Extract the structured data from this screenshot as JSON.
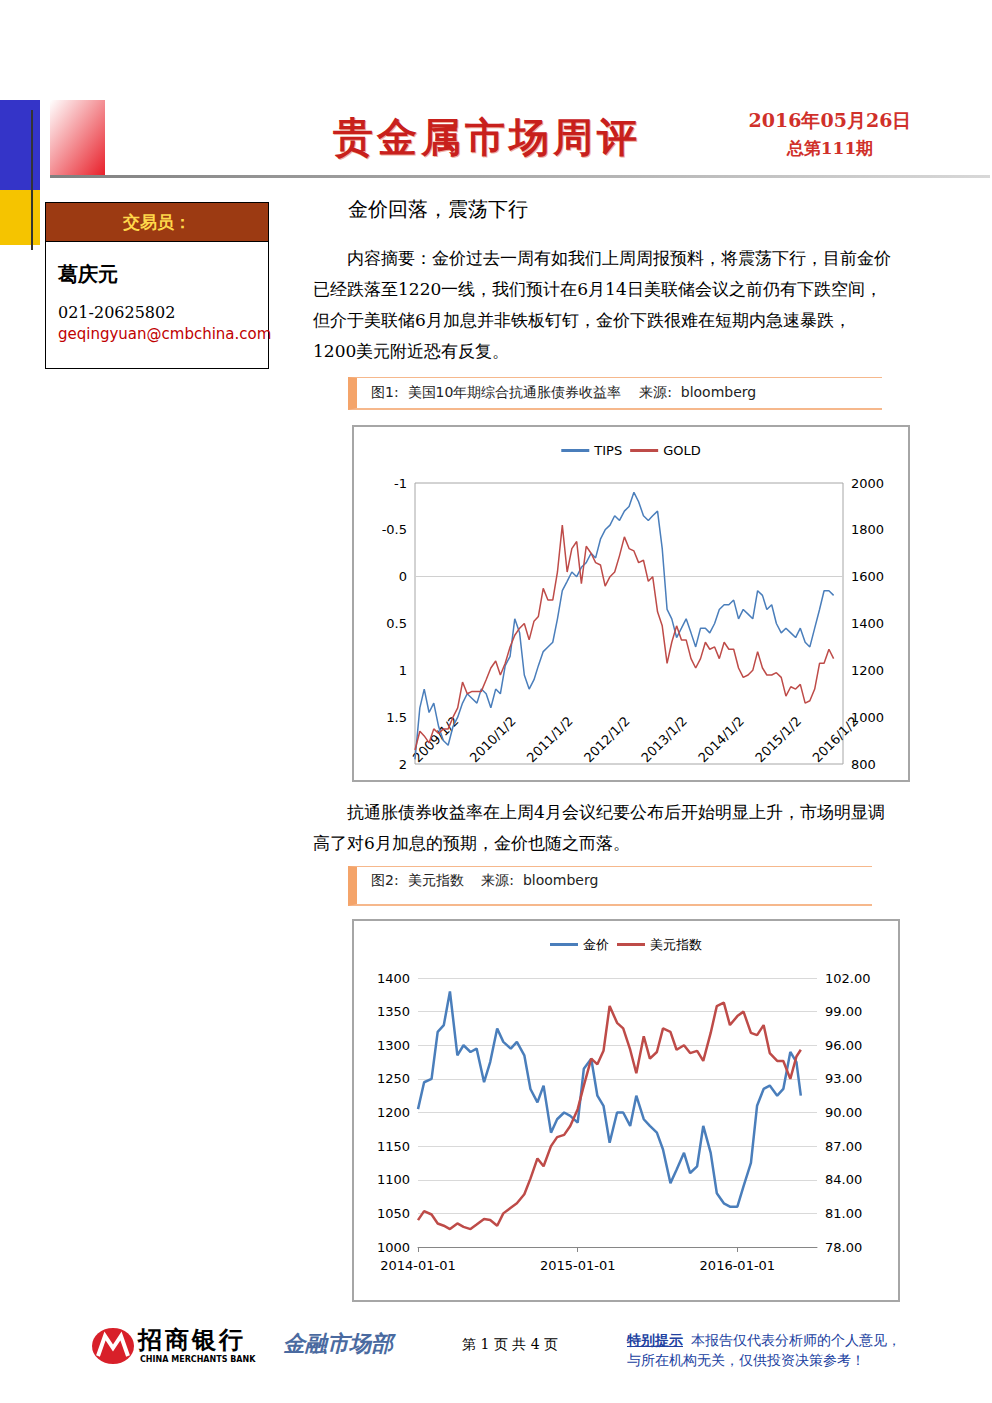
{
  "header": {
    "title": "贵金属市场周评",
    "date": "2016年05月26日",
    "issue": "总第111期"
  },
  "trader": {
    "label": "交易员：",
    "name": "葛庆元",
    "phone": "021-20625802",
    "email": "geqingyuan@cmbchina.com"
  },
  "headline": "金价回落，震荡下行",
  "summary": "内容摘要：金价过去一周有如我们上周周报预料，将震荡下行，目前金价已经跌落至1220一线，我们预计在6月14日美联储会议之前仍有下跌空间，但介于美联储6月加息并非铁板钉钉，金价下跌很难在短期内急速暴跌，1200美元附近恐有反复。",
  "paragraph": "抗通胀债券收益率在上周4月会议纪要公布后开始明显上升，市场明显调高了对6月加息的预期，金价也随之而落。",
  "captions": [
    "图1:  美国10年期综合抗通胀债券收益率    来源:  bloomberg",
    "图2:  美元指数    来源:  bloomberg"
  ],
  "chart_data": [
    {
      "type": "line",
      "legend": "top",
      "grid": false,
      "x": [
        "2009/1/2",
        "2009/2/2",
        "2009/3/2",
        "2009/4/2",
        "2009/5/2",
        "2009/6/2",
        "2009/7/2",
        "2009/8/2",
        "2009/9/2",
        "2009/10/2",
        "2009/11/2",
        "2009/12/2",
        "2010/1/2",
        "2010/2/2",
        "2010/3/2",
        "2010/4/2",
        "2010/5/2",
        "2010/6/2",
        "2010/7/2",
        "2010/8/2",
        "2010/9/2",
        "2010/10/2",
        "2010/11/2",
        "2010/12/2",
        "2011/1/2",
        "2011/2/2",
        "2011/3/2",
        "2011/4/2",
        "2011/5/2",
        "2011/6/2",
        "2011/7/2",
        "2011/8/2",
        "2011/9/2",
        "2011/10/2",
        "2011/11/2",
        "2011/12/2",
        "2012/1/2",
        "2012/2/2",
        "2012/3/2",
        "2012/4/2",
        "2012/5/2",
        "2012/6/2",
        "2012/7/2",
        "2012/8/2",
        "2012/9/2",
        "2012/10/2",
        "2012/11/2",
        "2012/12/2",
        "2013/1/2",
        "2013/2/2",
        "2013/3/2",
        "2013/4/2",
        "2013/5/2",
        "2013/6/2",
        "2013/7/2",
        "2013/8/2",
        "2013/9/2",
        "2013/10/2",
        "2013/11/2",
        "2013/12/2",
        "2014/1/2",
        "2014/2/2",
        "2014/3/2",
        "2014/4/2",
        "2014/5/2",
        "2014/6/2",
        "2014/7/2",
        "2014/8/2",
        "2014/9/2",
        "2014/10/2",
        "2014/11/2",
        "2014/12/2",
        "2015/1/2",
        "2015/2/2",
        "2015/3/2",
        "2015/4/2",
        "2015/5/2",
        "2015/6/2",
        "2015/7/2",
        "2015/8/2",
        "2015/9/2",
        "2015/10/2",
        "2015/11/2",
        "2015/12/2",
        "2016/1/2",
        "2016/2/2",
        "2016/3/2",
        "2016/4/2",
        "2016/5/2"
      ],
      "xlim": [
        "2009/1/2",
        "2016/7/1"
      ],
      "xticks": [
        "2009/1/2",
        "2010/1/2",
        "2011/1/2",
        "2012/1/2",
        "2013/1/2",
        "2014/1/2",
        "2015/1/2",
        "2016/1/2"
      ],
      "ylim": [
        2,
        -1
      ],
      "yticks": [
        2,
        1.5,
        1,
        0.5,
        0,
        -0.5,
        -1
      ],
      "y2lim": [
        800,
        2000
      ],
      "y2ticks": [
        800,
        1000,
        1200,
        1400,
        1600,
        1800,
        2000
      ],
      "series": [
        {
          "name": "TIPS",
          "color": "#4a7ebb",
          "values": [
            1.95,
            1.4,
            1.2,
            1.45,
            1.35,
            1.6,
            1.75,
            1.8,
            1.6,
            1.5,
            1.35,
            1.25,
            1.3,
            1.35,
            1.2,
            1.25,
            1.4,
            1.2,
            1.25,
            0.95,
            0.85,
            0.45,
            0.6,
            1.05,
            1.2,
            1.1,
            0.95,
            0.8,
            0.75,
            0.7,
            0.45,
            0.15,
            0.05,
            -0.05,
            0.0,
            -0.1,
            -0.15,
            -0.25,
            -0.2,
            -0.4,
            -0.5,
            -0.55,
            -0.65,
            -0.6,
            -0.7,
            -0.75,
            -0.9,
            -0.8,
            -0.65,
            -0.6,
            -0.65,
            -0.7,
            -0.3,
            0.35,
            0.45,
            0.65,
            0.55,
            0.45,
            0.6,
            0.75,
            0.55,
            0.55,
            0.6,
            0.5,
            0.35,
            0.3,
            0.3,
            0.25,
            0.45,
            0.35,
            0.4,
            0.45,
            0.15,
            0.2,
            0.35,
            0.3,
            0.5,
            0.6,
            0.55,
            0.6,
            0.65,
            0.55,
            0.7,
            0.75,
            0.55,
            0.35,
            0.15,
            0.15,
            0.2
          ]
        },
        {
          "name": "GOLD",
          "color": "#be4b48",
          "axis": "y2",
          "values": [
            860,
            940,
            920,
            890,
            950,
            930,
            950,
            950,
            1000,
            1040,
            1150,
            1100,
            1110,
            1110,
            1110,
            1160,
            1210,
            1240,
            1180,
            1230,
            1300,
            1350,
            1380,
            1400,
            1330,
            1410,
            1430,
            1550,
            1500,
            1500,
            1620,
            1820,
            1620,
            1720,
            1750,
            1570,
            1730,
            1700,
            1660,
            1650,
            1560,
            1600,
            1620,
            1690,
            1770,
            1720,
            1710,
            1660,
            1670,
            1580,
            1600,
            1450,
            1390,
            1230,
            1320,
            1390,
            1330,
            1330,
            1250,
            1210,
            1250,
            1320,
            1290,
            1300,
            1250,
            1320,
            1290,
            1290,
            1210,
            1170,
            1180,
            1200,
            1280,
            1210,
            1180,
            1180,
            1190,
            1170,
            1090,
            1130,
            1120,
            1140,
            1060,
            1070,
            1120,
            1230,
            1230,
            1290,
            1250
          ]
        }
      ]
    },
    {
      "type": "line",
      "legend": "top",
      "grid": true,
      "x": [
        "2014-01-01",
        "2014-01-15",
        "2014-02-01",
        "2014-02-15",
        "2014-03-01",
        "2014-03-15",
        "2014-04-01",
        "2014-04-15",
        "2014-05-01",
        "2014-05-15",
        "2014-06-01",
        "2014-06-15",
        "2014-07-01",
        "2014-07-15",
        "2014-08-01",
        "2014-08-15",
        "2014-09-01",
        "2014-09-15",
        "2014-10-01",
        "2014-10-15",
        "2014-11-01",
        "2014-11-15",
        "2014-12-01",
        "2014-12-15",
        "2015-01-01",
        "2015-01-15",
        "2015-02-01",
        "2015-02-15",
        "2015-03-01",
        "2015-03-15",
        "2015-04-01",
        "2015-04-15",
        "2015-05-01",
        "2015-05-15",
        "2015-06-01",
        "2015-06-15",
        "2015-07-01",
        "2015-07-15",
        "2015-08-01",
        "2015-08-15",
        "2015-09-01",
        "2015-09-15",
        "2015-10-01",
        "2015-10-15",
        "2015-11-01",
        "2015-11-15",
        "2015-12-01",
        "2015-12-15",
        "2016-01-01",
        "2016-01-15",
        "2016-02-01",
        "2016-02-15",
        "2016-03-01",
        "2016-03-15",
        "2016-04-01",
        "2016-04-15",
        "2016-05-01",
        "2016-05-15",
        "2016-05-25"
      ],
      "xlim": [
        "2014-01-01",
        "2016-07-01"
      ],
      "xticks": [
        "2014-01-01",
        "2015-01-01",
        "2016-01-01"
      ],
      "ylim": [
        1000,
        1400
      ],
      "yticks": [
        1000,
        1050,
        1100,
        1150,
        1200,
        1250,
        1300,
        1350,
        1400
      ],
      "y2lim": [
        78,
        102
      ],
      "y2ticks": [
        {
          "value": 78,
          "label": "78.00"
        },
        {
          "value": 81,
          "label": "81.00"
        },
        {
          "value": 84,
          "label": "84.00"
        },
        {
          "value": 87,
          "label": "87.00"
        },
        {
          "value": 90,
          "label": "90.00"
        },
        {
          "value": 93,
          "label": "93.00"
        },
        {
          "value": 96,
          "label": "96.00"
        },
        {
          "value": 99,
          "label": "99.00"
        },
        {
          "value": 102,
          "label": "102.00"
        }
      ],
      "series": [
        {
          "name": "金价",
          "color": "#4a7ebb",
          "values": [
            1205,
            1245,
            1250,
            1320,
            1330,
            1380,
            1285,
            1300,
            1290,
            1295,
            1245,
            1275,
            1325,
            1305,
            1295,
            1305,
            1285,
            1235,
            1215,
            1240,
            1170,
            1190,
            1200,
            1195,
            1185,
            1265,
            1280,
            1225,
            1210,
            1155,
            1200,
            1200,
            1180,
            1225,
            1190,
            1180,
            1170,
            1145,
            1095,
            1115,
            1140,
            1110,
            1120,
            1180,
            1140,
            1080,
            1065,
            1060,
            1060,
            1090,
            1125,
            1210,
            1235,
            1240,
            1225,
            1235,
            1290,
            1275,
            1225
          ]
        },
        {
          "name": "美元指数",
          "color": "#be4b48",
          "axis": "y2",
          "values": [
            80.4,
            81.2,
            80.9,
            80.1,
            79.9,
            79.6,
            80.1,
            79.8,
            79.6,
            80.0,
            80.5,
            80.4,
            79.9,
            81.0,
            81.5,
            81.9,
            82.7,
            84.1,
            85.9,
            85.2,
            87.0,
            87.8,
            88.0,
            88.8,
            90.3,
            92.4,
            94.8,
            94.3,
            95.5,
            99.5,
            98.0,
            97.5,
            95.6,
            93.5,
            96.8,
            94.8,
            95.4,
            97.5,
            97.2,
            95.6,
            96.0,
            95.3,
            95.5,
            94.6,
            97.1,
            99.5,
            99.8,
            97.8,
            98.6,
            99.0,
            97.1,
            96.9,
            97.8,
            95.3,
            94.6,
            94.6,
            93.0,
            95.0,
            95.6
          ]
        }
      ]
    }
  ],
  "footer": {
    "bank": "招商银行",
    "bank_en": "CHINA MERCHANTS BANK",
    "department": "金融市场部",
    "page": "第 1 页 共 4 页",
    "notice_label": "特别提示",
    "notice_lines": [
      "本报告仅代表分析师的个人意见，",
      "与所在机构无关，仅供投资决策参考！"
    ]
  }
}
